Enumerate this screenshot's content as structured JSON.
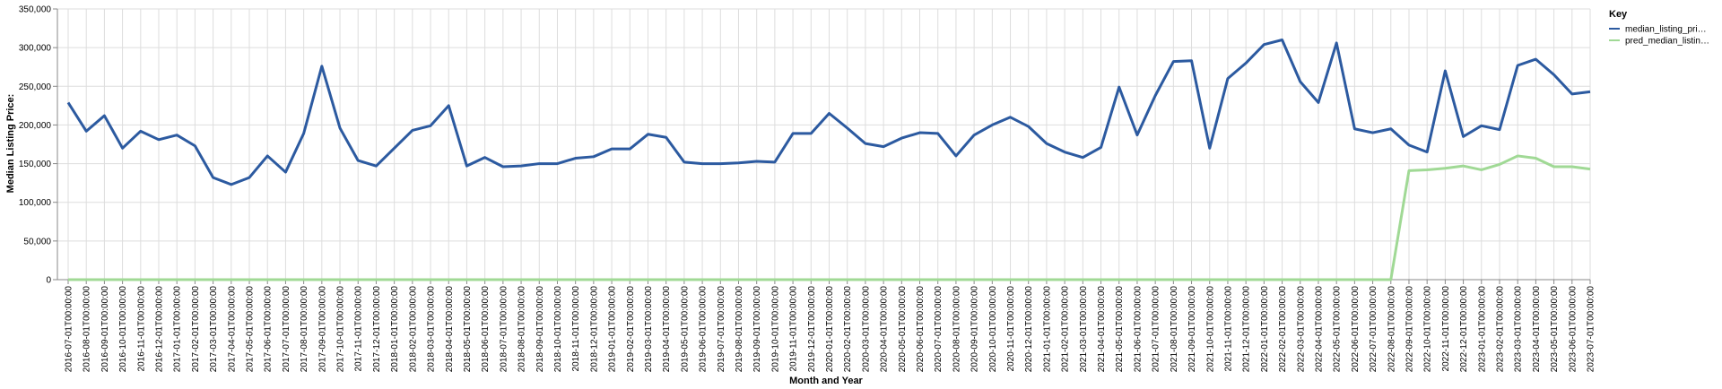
{
  "chart_data": {
    "type": "line",
    "xlabel": "Month and Year",
    "ylabel": "Median Listing Price:",
    "ylim": [
      0,
      350000
    ],
    "yticks": [
      "0",
      "50,000",
      "100,000",
      "150,000",
      "200,000",
      "250,000",
      "300,000",
      "350,000"
    ],
    "ytick_values": [
      0,
      50000,
      100000,
      150000,
      200000,
      250000,
      300000,
      350000
    ],
    "grid": true,
    "legend": {
      "title": "Key",
      "placement": "top-right",
      "entries": [
        "median_listing_pri…",
        "pred_median_listin…"
      ]
    },
    "x": [
      "2016-07-01T00:00:00",
      "2016-08-01T00:00:00",
      "2016-09-01T00:00:00",
      "2016-10-01T00:00:00",
      "2016-11-01T00:00:00",
      "2016-12-01T00:00:00",
      "2017-01-01T00:00:00",
      "2017-02-01T00:00:00",
      "2017-03-01T00:00:00",
      "2017-04-01T00:00:00",
      "2017-05-01T00:00:00",
      "2017-06-01T00:00:00",
      "2017-07-01T00:00:00",
      "2017-08-01T00:00:00",
      "2017-09-01T00:00:00",
      "2017-10-01T00:00:00",
      "2017-11-01T00:00:00",
      "2017-12-01T00:00:00",
      "2018-01-01T00:00:00",
      "2018-02-01T00:00:00",
      "2018-03-01T00:00:00",
      "2018-04-01T00:00:00",
      "2018-05-01T00:00:00",
      "2018-06-01T00:00:00",
      "2018-07-01T00:00:00",
      "2018-08-01T00:00:00",
      "2018-09-01T00:00:00",
      "2018-10-01T00:00:00",
      "2018-11-01T00:00:00",
      "2018-12-01T00:00:00",
      "2019-01-01T00:00:00",
      "2019-02-01T00:00:00",
      "2019-03-01T00:00:00",
      "2019-04-01T00:00:00",
      "2019-05-01T00:00:00",
      "2019-06-01T00:00:00",
      "2019-07-01T00:00:00",
      "2019-08-01T00:00:00",
      "2019-09-01T00:00:00",
      "2019-10-01T00:00:00",
      "2019-11-01T00:00:00",
      "2019-12-01T00:00:00",
      "2020-01-01T00:00:00",
      "2020-02-01T00:00:00",
      "2020-03-01T00:00:00",
      "2020-04-01T00:00:00",
      "2020-05-01T00:00:00",
      "2020-06-01T00:00:00",
      "2020-07-01T00:00:00",
      "2020-08-01T00:00:00",
      "2020-09-01T00:00:00",
      "2020-10-01T00:00:00",
      "2020-11-01T00:00:00",
      "2020-12-01T00:00:00",
      "2021-01-01T00:00:00",
      "2021-02-01T00:00:00",
      "2021-03-01T00:00:00",
      "2021-04-01T00:00:00",
      "2021-05-01T00:00:00",
      "2021-06-01T00:00:00",
      "2021-07-01T00:00:00",
      "2021-08-01T00:00:00",
      "2021-09-01T00:00:00",
      "2021-10-01T00:00:00",
      "2021-11-01T00:00:00",
      "2021-12-01T00:00:00",
      "2022-01-01T00:00:00",
      "2022-02-01T00:00:00",
      "2022-03-01T00:00:00",
      "2022-04-01T00:00:00",
      "2022-05-01T00:00:00",
      "2022-06-01T00:00:00",
      "2022-07-01T00:00:00",
      "2022-08-01T00:00:00",
      "2022-09-01T00:00:00",
      "2022-10-01T00:00:00",
      "2022-11-01T00:00:00",
      "2022-12-01T00:00:00",
      "2023-01-01T00:00:00",
      "2023-02-01T00:00:00",
      "2023-03-01T00:00:00",
      "2023-04-01T00:00:00",
      "2023-05-01T00:00:00",
      "2023-06-01T00:00:00",
      "2023-07-01T00:00:00"
    ],
    "series": [
      {
        "name": "median_listing_pri…",
        "color": "#2c5aa0",
        "values": [
          229000,
          192000,
          212000,
          170000,
          192000,
          181000,
          187000,
          173000,
          132000,
          123000,
          132000,
          160000,
          139000,
          189000,
          276000,
          196000,
          154000,
          147000,
          170000,
          193000,
          199000,
          225000,
          147000,
          158000,
          146000,
          147000,
          150000,
          150000,
          157000,
          159000,
          169000,
          169000,
          188000,
          184000,
          152000,
          150000,
          150000,
          151000,
          153000,
          152000,
          189000,
          189000,
          215000,
          196000,
          176000,
          172000,
          183000,
          190000,
          189000,
          160000,
          187000,
          200000,
          210000,
          198000,
          176000,
          165000,
          158000,
          171000,
          249000,
          187000,
          238000,
          282000,
          283000,
          170000,
          260000,
          280000,
          304000,
          310000,
          256000,
          229000,
          306000,
          195000,
          190000,
          195000,
          174000,
          165000,
          270000,
          185000,
          199000,
          194000,
          277000,
          285000,
          265000,
          240000,
          243000
        ]
      },
      {
        "name": "pred_median_listin…",
        "color": "#a0d995",
        "values": [
          0,
          0,
          0,
          0,
          0,
          0,
          0,
          0,
          0,
          0,
          0,
          0,
          0,
          0,
          0,
          0,
          0,
          0,
          0,
          0,
          0,
          0,
          0,
          0,
          0,
          0,
          0,
          0,
          0,
          0,
          0,
          0,
          0,
          0,
          0,
          0,
          0,
          0,
          0,
          0,
          0,
          0,
          0,
          0,
          0,
          0,
          0,
          0,
          0,
          0,
          0,
          0,
          0,
          0,
          0,
          0,
          0,
          0,
          0,
          0,
          0,
          0,
          0,
          0,
          0,
          0,
          0,
          0,
          0,
          0,
          0,
          0,
          0,
          0,
          141000,
          142000,
          144000,
          147000,
          142000,
          149000,
          160000,
          157000,
          146000,
          146000,
          143000
        ]
      }
    ]
  }
}
